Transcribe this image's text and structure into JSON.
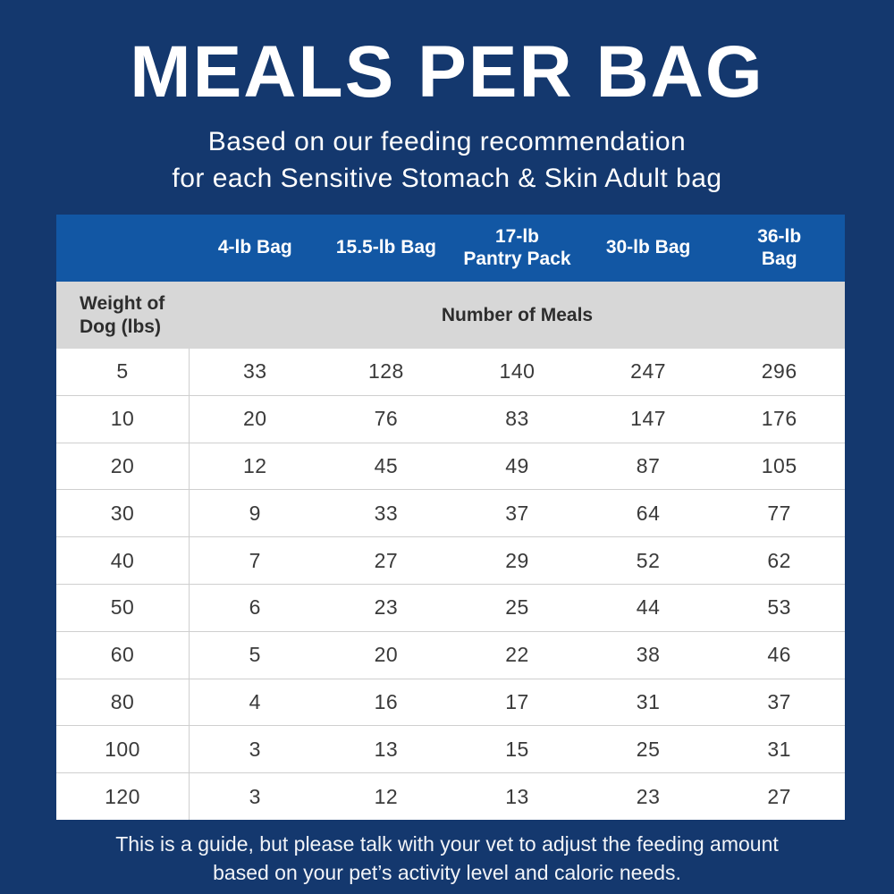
{
  "title": "MEALS PER BAG",
  "subtitle": [
    "Based on our feeding recommendation",
    "for each Sensitive Stomach & Skin Adult bag"
  ],
  "table": {
    "bag_headers": [
      "4-lb Bag",
      "15.5-lb Bag",
      "17-lb\nPantry Pack",
      "30-lb Bag",
      "36-lb\nBag"
    ],
    "weight_header": "Weight of\nDog (lbs)",
    "meals_header": "Number of Meals",
    "rows": [
      {
        "weight": "5",
        "meals": [
          "33",
          "128",
          "140",
          "247",
          "296"
        ]
      },
      {
        "weight": "10",
        "meals": [
          "20",
          "76",
          "83",
          "147",
          "176"
        ]
      },
      {
        "weight": "20",
        "meals": [
          "12",
          "45",
          "49",
          "87",
          "105"
        ]
      },
      {
        "weight": "30",
        "meals": [
          "9",
          "33",
          "37",
          "64",
          "77"
        ]
      },
      {
        "weight": "40",
        "meals": [
          "7",
          "27",
          "29",
          "52",
          "62"
        ]
      },
      {
        "weight": "50",
        "meals": [
          "6",
          "23",
          "25",
          "44",
          "53"
        ]
      },
      {
        "weight": "60",
        "meals": [
          "5",
          "20",
          "22",
          "38",
          "46"
        ]
      },
      {
        "weight": "80",
        "meals": [
          "4",
          "16",
          "17",
          "31",
          "37"
        ]
      },
      {
        "weight": "100",
        "meals": [
          "3",
          "13",
          "15",
          "25",
          "31"
        ]
      },
      {
        "weight": "120",
        "meals": [
          "3",
          "12",
          "13",
          "23",
          "27"
        ]
      }
    ]
  },
  "footer": [
    "This is a guide, but please talk with your vet to adjust the feeding amount",
    "based on your pet’s activity level and caloric needs."
  ],
  "colors": {
    "background_navy": "#14386e",
    "header_blue": "#1257a4",
    "subheader_gray": "#d7d7d7",
    "row_white": "#ffffff",
    "grid_line": "#cfcfcf",
    "text_dark": "#2d2d2d",
    "text_white": "#ffffff"
  },
  "chart_data": {
    "type": "table",
    "title": "MEALS PER BAG",
    "subtitle": "Based on our feeding recommendation for each Sensitive Stomach & Skin Adult bag",
    "columns": [
      "Weight of Dog (lbs)",
      "4-lb Bag",
      "15.5-lb Bag",
      "17-lb Pantry Pack",
      "30-lb Bag",
      "36-lb Bag"
    ],
    "value_group_header": "Number of Meals",
    "rows": [
      [
        5,
        33,
        128,
        140,
        247,
        296
      ],
      [
        10,
        20,
        76,
        83,
        147,
        176
      ],
      [
        20,
        12,
        45,
        49,
        87,
        105
      ],
      [
        30,
        9,
        33,
        37,
        64,
        77
      ],
      [
        40,
        7,
        27,
        29,
        52,
        62
      ],
      [
        50,
        6,
        23,
        25,
        44,
        53
      ],
      [
        60,
        5,
        20,
        22,
        38,
        46
      ],
      [
        80,
        4,
        16,
        17,
        31,
        37
      ],
      [
        100,
        3,
        13,
        15,
        25,
        31
      ],
      [
        120,
        3,
        12,
        13,
        23,
        27
      ]
    ],
    "note": "This is a guide, but please talk with your vet to adjust the feeding amount based on your pet’s activity level and caloric needs."
  }
}
